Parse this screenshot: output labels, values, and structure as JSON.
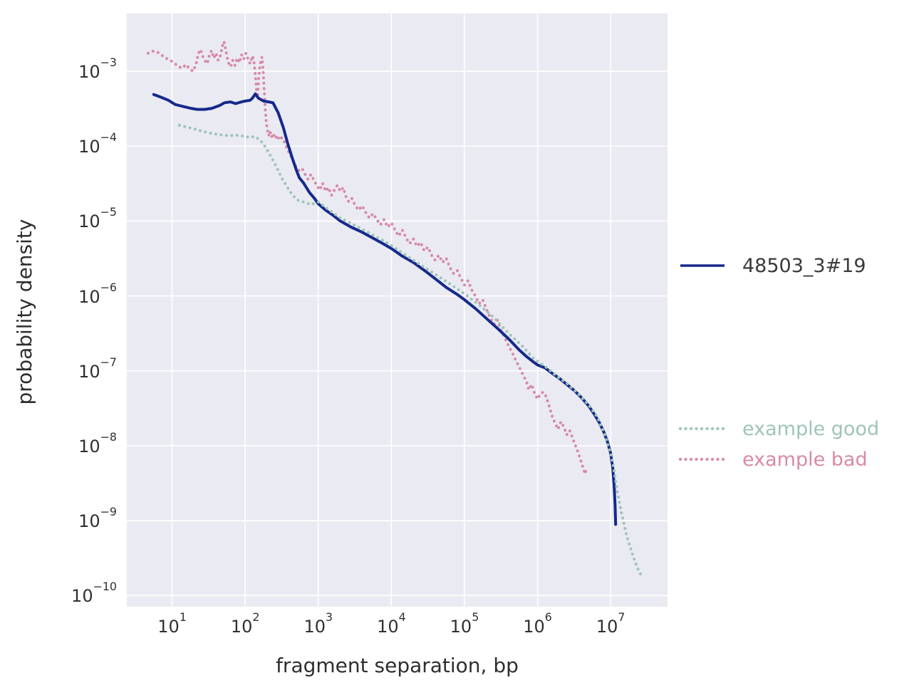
{
  "chart_data": {
    "type": "line",
    "title": "",
    "xlabel": "fragment separation, bp",
    "ylabel": "probability density",
    "xscale": "log",
    "yscale": "log",
    "grid": true,
    "legend_position": "right-outside",
    "xlim": [
      2.4,
      60000000
    ],
    "ylim": [
      0.0059,
      7.1e-11
    ],
    "x_tick_exponents": [
      1,
      2,
      3,
      4,
      5,
      6,
      7
    ],
    "y_tick_exponents": [
      -3,
      -4,
      -5,
      -6,
      -7,
      -8,
      -9,
      -10
    ],
    "colors": {
      "axes_background": "#eaeaf2",
      "grid": "#ffffff",
      "tick_text": "#303030",
      "axis_label_text": "#2e2e2e",
      "sample_legend_text": "#3a3a3a"
    },
    "series": [
      {
        "name": "example bad",
        "style": "dotted",
        "color": "#d78aa6",
        "points": [
          [
            4.7,
            0.00174
          ],
          [
            5.4,
            0.00186
          ],
          [
            6.2,
            0.00182
          ],
          [
            7.1,
            0.00166
          ],
          [
            8.1,
            0.00151
          ],
          [
            9.3,
            0.00141
          ],
          [
            10.7,
            0.00129
          ],
          [
            12.3,
            0.00115
          ],
          [
            13.8,
            0.0011
          ],
          [
            15.5,
            0.00123
          ],
          [
            17.4,
            0.00107
          ],
          [
            19.5,
            0.001
          ],
          [
            21.4,
            0.00129
          ],
          [
            22.9,
            0.00174
          ],
          [
            24.5,
            0.00195
          ],
          [
            26.3,
            0.00158
          ],
          [
            28.2,
            0.00138
          ],
          [
            30.2,
            0.00126
          ],
          [
            32.4,
            0.00166
          ],
          [
            34.7,
            0.0019
          ],
          [
            37.2,
            0.0015
          ],
          [
            39.8,
            0.00174
          ],
          [
            42.7,
            0.0014
          ],
          [
            45.7,
            0.0016
          ],
          [
            49,
            0.0022
          ],
          [
            51.3,
            0.0025
          ],
          [
            53.7,
            0.002
          ],
          [
            56.2,
            0.0016
          ],
          [
            58.9,
            0.0013
          ],
          [
            63.1,
            0.00115
          ],
          [
            67.6,
            0.0014
          ],
          [
            72.4,
            0.0012
          ],
          [
            77.6,
            0.0015
          ],
          [
            83.2,
            0.0013
          ],
          [
            89.1,
            0.00166
          ],
          [
            95.5,
            0.00145
          ],
          [
            102,
            0.00174
          ],
          [
            110,
            0.00145
          ],
          [
            117,
            0.00126
          ],
          [
            126,
            0.0016
          ],
          [
            132,
            0.00132
          ],
          [
            138,
            0.00089
          ],
          [
            143,
            0.00056
          ],
          [
            148,
            0.00045
          ],
          [
            153,
            0.00079
          ],
          [
            158,
            0.00112
          ],
          [
            164,
            0.0014
          ],
          [
            170,
            0.00155
          ],
          [
            176,
            0.001
          ],
          [
            182,
            0.00056
          ],
          [
            188,
            0.00032
          ],
          [
            195,
            0.0002
          ],
          [
            202,
            0.000166
          ],
          [
            209,
            0.000138
          ],
          [
            219,
            0.000158
          ],
          [
            229,
            0.000132
          ],
          [
            240,
            0.000148
          ],
          [
            257,
            0.000126
          ],
          [
            275,
            0.00014
          ],
          [
            295,
            0.00012
          ],
          [
            316,
            0.00013
          ],
          [
            347,
            0.000112
          ],
          [
            380,
            8.9e-05
          ],
          [
            417,
            7.6e-05
          ],
          [
            457,
            6.3e-05
          ],
          [
            501,
            5.2e-05
          ],
          [
            550,
            4.7e-05
          ],
          [
            603,
            5e-05
          ],
          [
            661,
            4.2e-05
          ],
          [
            724,
            3.6e-05
          ],
          [
            794,
            4.2e-05
          ],
          [
            871,
            3.5e-05
          ],
          [
            955,
            3e-05
          ],
          [
            1047,
            2.6e-05
          ],
          [
            1148,
            3.2e-05
          ],
          [
            1259,
            2.5e-05
          ],
          [
            1380,
            2.8e-05
          ],
          [
            1514,
            2.2e-05
          ],
          [
            1660,
            2.6e-05
          ],
          [
            1820,
            3e-05
          ],
          [
            1995,
            2.5e-05
          ],
          [
            2188,
            2.8e-05
          ],
          [
            2399,
            2.1e-05
          ],
          [
            2630,
            1.8e-05
          ],
          [
            2884,
            2e-05
          ],
          [
            3162,
            1.66e-05
          ],
          [
            3548,
            1.4e-05
          ],
          [
            3981,
            1.6e-05
          ],
          [
            4467,
            1.3e-05
          ],
          [
            5012,
            1.1e-05
          ],
          [
            5623,
            1.26e-05
          ],
          [
            6310,
            1.05e-05
          ],
          [
            7079,
            8.9e-06
          ],
          [
            7943,
            1.05e-05
          ],
          [
            8913,
            8.3e-06
          ],
          [
            10000,
            9.5e-06
          ],
          [
            11220,
            7.6e-06
          ],
          [
            12590,
            6.3e-06
          ],
          [
            14130,
            7.6e-06
          ],
          [
            15850,
            6e-06
          ],
          [
            17780,
            5e-06
          ],
          [
            19950,
            5.8e-06
          ],
          [
            22390,
            4.6e-06
          ],
          [
            25120,
            5.2e-06
          ],
          [
            28180,
            4e-06
          ],
          [
            31620,
            4.5e-06
          ],
          [
            35480,
            3.5e-06
          ],
          [
            39810,
            3e-06
          ],
          [
            44670,
            3.5e-06
          ],
          [
            50120,
            2.8e-06
          ],
          [
            56230,
            3.2e-06
          ],
          [
            63100,
            2.4e-06
          ],
          [
            70790,
            2e-06
          ],
          [
            79430,
            2.2e-06
          ],
          [
            89130,
            1.74e-06
          ],
          [
            100000,
            1.4e-06
          ],
          [
            112000,
            1.6e-06
          ],
          [
            126000,
            1.2e-06
          ],
          [
            141000,
            1e-06
          ],
          [
            158000,
            7.9e-07
          ],
          [
            178000,
            8.9e-07
          ],
          [
            200000,
            6.6e-07
          ],
          [
            224000,
            5.2e-07
          ],
          [
            251000,
            4.2e-07
          ],
          [
            282000,
            4.8e-07
          ],
          [
            316000,
            3.5e-07
          ],
          [
            355000,
            2.8e-07
          ],
          [
            398000,
            2.2e-07
          ],
          [
            447000,
            1.78e-07
          ],
          [
            501000,
            1.4e-07
          ],
          [
            562000,
            1.12e-07
          ],
          [
            631000,
            8.9e-08
          ],
          [
            708000,
            7.1e-08
          ],
          [
            759000,
            5.6e-08
          ],
          [
            832000,
            6.6e-08
          ],
          [
            912000,
            5e-08
          ],
          [
            1000000.0,
            4.2e-08
          ],
          [
            1100000.0,
            5e-08
          ],
          [
            1200000.0,
            5.2e-08
          ],
          [
            1320000.0,
            4.5e-08
          ],
          [
            1450000.0,
            3.3e-08
          ],
          [
            1580000.0,
            2.5e-08
          ],
          [
            1740000.0,
            2e-08
          ],
          [
            1900000.0,
            1.66e-08
          ],
          [
            2090000.0,
            2.1e-08
          ],
          [
            2290000.0,
            1.78e-08
          ],
          [
            2510000.0,
            1.4e-08
          ],
          [
            2750000.0,
            1.6e-08
          ],
          [
            3020000.0,
            1.26e-08
          ],
          [
            3310000.0,
            1e-08
          ],
          [
            3630000.0,
            7.9e-09
          ],
          [
            3980000.0,
            6e-09
          ],
          [
            4270000.0,
            4.8e-09
          ],
          [
            4470000.0,
            4.2e-09
          ],
          [
            4680000.0,
            5e-09
          ]
        ]
      },
      {
        "name": "48503_3#19",
        "style": "solid",
        "color": "#15298c",
        "points": [
          [
            5.6,
            0.00049
          ],
          [
            7.1,
            0.00045
          ],
          [
            8.9,
            0.00041
          ],
          [
            11,
            0.00036
          ],
          [
            14,
            0.00034
          ],
          [
            18,
            0.00032
          ],
          [
            22,
            0.00031
          ],
          [
            28,
            0.00031
          ],
          [
            35,
            0.00032
          ],
          [
            45,
            0.00035
          ],
          [
            52,
            0.00038
          ],
          [
            63,
            0.00039
          ],
          [
            74,
            0.00037
          ],
          [
            89,
            0.00039
          ],
          [
            100,
            0.0004
          ],
          [
            117,
            0.00041
          ],
          [
            126,
            0.00044
          ],
          [
            138,
            0.0005
          ],
          [
            151,
            0.00044
          ],
          [
            178,
            0.0004
          ],
          [
            209,
            0.00039
          ],
          [
            240,
            0.00038
          ],
          [
            282,
            0.00028
          ],
          [
            331,
            0.00018
          ],
          [
            380,
            0.00011
          ],
          [
            437,
            7.1e-05
          ],
          [
            501,
            4.8e-05
          ],
          [
            550,
            3.8e-05
          ],
          [
            631,
            3.2e-05
          ],
          [
            759,
            2.4e-05
          ],
          [
            891,
            2e-05
          ],
          [
            1000,
            1.7e-05
          ],
          [
            1260,
            1.4e-05
          ],
          [
            1580,
            1.2e-05
          ],
          [
            2000,
            1e-05
          ],
          [
            2820,
            8.3e-06
          ],
          [
            3980,
            7.1e-06
          ],
          [
            5620,
            5.9e-06
          ],
          [
            7940,
            4.9e-06
          ],
          [
            10000,
            4.3e-06
          ],
          [
            14100,
            3.4e-06
          ],
          [
            20000,
            2.8e-06
          ],
          [
            28200,
            2.2e-06
          ],
          [
            39800,
            1.7e-06
          ],
          [
            56200,
            1.3e-06
          ],
          [
            79400,
            1.05e-06
          ],
          [
            100000,
            8.9e-07
          ],
          [
            141000,
            6.8e-07
          ],
          [
            200000,
            5e-07
          ],
          [
            282000,
            3.7e-07
          ],
          [
            398000,
            2.7e-07
          ],
          [
            562000,
            1.9e-07
          ],
          [
            708000,
            1.55e-07
          ],
          [
            891000,
            1.3e-07
          ],
          [
            1000000.0,
            1.2e-07
          ],
          [
            1260000.0,
            1.1e-07
          ],
          [
            1580000.0,
            9.3e-08
          ],
          [
            2000000.0,
            7.9e-08
          ],
          [
            2510000.0,
            6.6e-08
          ],
          [
            3160000.0,
            5.5e-08
          ],
          [
            3980000.0,
            4.4e-08
          ],
          [
            5010000.0,
            3.4e-08
          ],
          [
            6030000.0,
            2.6e-08
          ],
          [
            7080000.0,
            2e-08
          ],
          [
            8130000.0,
            1.5e-08
          ],
          [
            9120000.0,
            1.1e-08
          ],
          [
            10000000.0,
            7.9e-09
          ],
          [
            10700000.0,
            5e-09
          ],
          [
            11200000.0,
            2.8e-09
          ],
          [
            11500000.0,
            1.6e-09
          ],
          [
            11700000.0,
            8.9e-10
          ]
        ]
      },
      {
        "name": "example good",
        "style": "dotted",
        "color": "#9ec4b8",
        "points": [
          [
            12.6,
            0.00019
          ],
          [
            15.8,
            0.00018
          ],
          [
            20,
            0.00017
          ],
          [
            25,
            0.00016
          ],
          [
            32,
            0.00015
          ],
          [
            40,
            0.000145
          ],
          [
            50,
            0.00014
          ],
          [
            63,
            0.000138
          ],
          [
            79,
            0.00014
          ],
          [
            100,
            0.000135
          ],
          [
            115,
            0.00013
          ],
          [
            132,
            0.000135
          ],
          [
            151,
            0.000126
          ],
          [
            174,
            0.00011
          ],
          [
            200,
            8.9e-05
          ],
          [
            234,
            6.8e-05
          ],
          [
            275,
            5e-05
          ],
          [
            324,
            3.6e-05
          ],
          [
            380,
            2.8e-05
          ],
          [
            447,
            2.2e-05
          ],
          [
            525,
            1.9e-05
          ],
          [
            631,
            1.8e-05
          ],
          [
            794,
            1.66e-05
          ],
          [
            1000,
            1.8e-05
          ],
          [
            1410,
            1.4e-05
          ],
          [
            2000,
            1.1e-05
          ],
          [
            2820,
            9.3e-06
          ],
          [
            3980,
            7.8e-06
          ],
          [
            5620,
            6.5e-06
          ],
          [
            7940,
            5.4e-06
          ],
          [
            11200,
            4.4e-06
          ],
          [
            15800,
            3.5e-06
          ],
          [
            25100,
            2.6e-06
          ],
          [
            39800,
            1.95e-06
          ],
          [
            63100,
            1.45e-06
          ],
          [
            100000,
            1.07e-06
          ],
          [
            158000,
            7.6e-07
          ],
          [
            251000,
            5.2e-07
          ],
          [
            398000,
            3.2e-07
          ],
          [
            631000,
            2.1e-07
          ],
          [
            891000,
            1.45e-07
          ],
          [
            1260000.0,
            1.15e-07
          ],
          [
            1780000.0,
            8.7e-08
          ],
          [
            2510000.0,
            6.8e-08
          ],
          [
            3550000.0,
            5e-08
          ],
          [
            5010000.0,
            3.5e-08
          ],
          [
            6610000.0,
            2.4e-08
          ],
          [
            8320000.0,
            1.4e-08
          ],
          [
            10000000.0,
            7.9e-09
          ],
          [
            11000000.0,
            5e-09
          ],
          [
            12300000.0,
            2.5e-09
          ],
          [
            14100000.0,
            1.26e-09
          ],
          [
            16600000.0,
            6.3e-10
          ],
          [
            20000000.0,
            3.5e-10
          ],
          [
            23400000.0,
            2.3e-10
          ],
          [
            27500000.0,
            1.7e-10
          ]
        ]
      }
    ]
  }
}
